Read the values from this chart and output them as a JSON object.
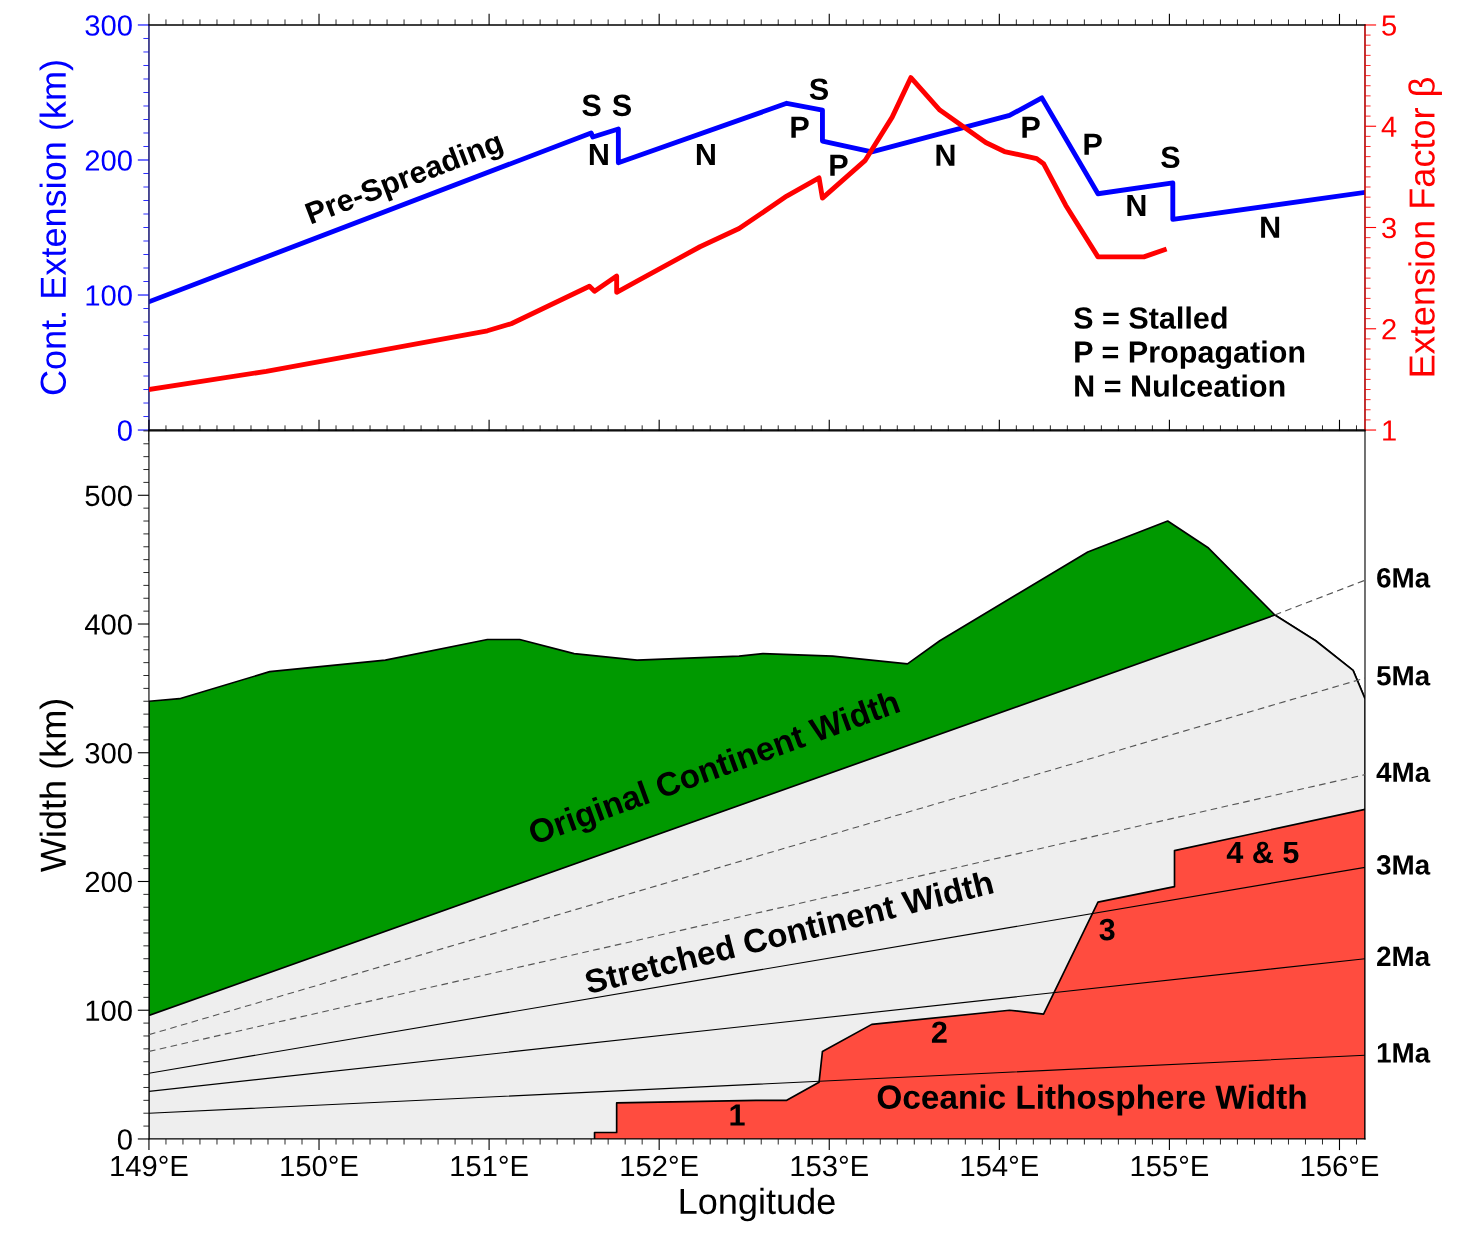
{
  "chart_data": [
    {
      "type": "line",
      "ylabel": "Cont. Extension (km)",
      "y2label": "Extension Factor β",
      "xlim": [
        149,
        156.15
      ],
      "xticks": [
        {
          "value": 149,
          "label": null
        },
        {
          "value": 150,
          "label": null
        },
        {
          "value": 151,
          "label": null
        },
        {
          "value": 152,
          "label": null
        },
        {
          "value": 153,
          "label": null
        },
        {
          "value": 154,
          "label": null
        },
        {
          "value": 155,
          "label": null
        },
        {
          "value": 156,
          "label": null
        }
      ],
      "ylim": [
        0,
        300
      ],
      "yticks": [
        0,
        100,
        200,
        300
      ],
      "y2lim": [
        1,
        5
      ],
      "y2ticks": [
        1,
        2,
        3,
        4,
        5
      ],
      "tick_labels": "y",
      "series": [
        {
          "color": "#0000ff",
          "axis": "y",
          "x": [
            149.0,
            151.6,
            151.61,
            151.76,
            151.76,
            152.75,
            152.96,
            152.96,
            153.25,
            154.06,
            154.25,
            154.58,
            155.02,
            155.02,
            156.15
          ],
          "values": [
            95,
            220,
            217,
            223,
            198,
            242,
            237,
            214,
            206,
            233,
            246,
            175,
            183,
            156,
            176
          ]
        },
        {
          "color": "#ff0000",
          "axis": "y2",
          "x": [
            149.0,
            149.69,
            150.99,
            151.13,
            151.59,
            151.62,
            151.75,
            151.75,
            151.87,
            152.24,
            152.47,
            152.75,
            152.94,
            152.96,
            153.21,
            153.37,
            153.48,
            153.65,
            153.92,
            154.03,
            154.22,
            154.26,
            154.39,
            154.58,
            154.85,
            154.97
          ],
          "values": [
            1.4,
            1.58,
            1.98,
            2.05,
            2.42,
            2.37,
            2.52,
            2.36,
            2.47,
            2.81,
            2.99,
            3.31,
            3.49,
            3.29,
            3.66,
            4.09,
            4.48,
            4.16,
            3.84,
            3.75,
            3.68,
            3.63,
            3.22,
            2.71,
            2.71,
            2.78
          ]
        }
      ],
      "annotations": [
        "Pre-Spreading",
        "S",
        "S",
        "N",
        "N",
        "S",
        "P",
        "P",
        "N",
        "P",
        "P",
        "S",
        "N",
        "N",
        "S = Stalled",
        "P = Propagation",
        "N = Nulceation"
      ]
    },
    {
      "type": "area",
      "xlabel": "Longitude",
      "ylabel": "Width (km)",
      "xlim": [
        149,
        156.15
      ],
      "xticks": [
        {
          "value": 149,
          "label": "149°E"
        },
        {
          "value": 150,
          "label": "150°E"
        },
        {
          "value": 151,
          "label": "151°E"
        },
        {
          "value": 152,
          "label": "152°E"
        },
        {
          "value": 153,
          "label": "153°E"
        },
        {
          "value": 154,
          "label": "154°E"
        },
        {
          "value": 155,
          "label": "155°E"
        },
        {
          "value": 156,
          "label": "156°E"
        }
      ],
      "ylim": [
        0,
        550
      ],
      "yticks": [
        0,
        100,
        200,
        300,
        400,
        500
      ],
      "series": [
        {
          "color": "#009900",
          "x": [
            149.0,
            149.18,
            149.71,
            150.39,
            150.99,
            151.18,
            151.5,
            151.87,
            152.47,
            152.61,
            153.02,
            153.46,
            153.65,
            154.52,
            154.99,
            155.23,
            155.62,
            155.86,
            156.08,
            156.15
          ],
          "values": [
            340,
            342,
            363,
            372,
            388,
            388,
            377,
            372,
            375,
            377,
            375,
            369,
            387,
            456,
            480,
            459,
            407,
            387,
            364,
            342
          ]
        },
        {
          "color": "#eeeeee",
          "x": [
            149.0,
            155.62,
            155.86,
            156.08,
            156.15
          ],
          "values": [
            96,
            407,
            387,
            364,
            342
          ]
        },
        {
          "color": "#ff4c3f",
          "x": [
            151.62,
            151.75,
            151.75,
            152.57,
            152.75,
            152.94,
            152.96,
            153.25,
            154.06,
            154.26,
            154.58,
            155.03,
            155.03,
            156.15
          ],
          "values": [
            5,
            5,
            28,
            30,
            30,
            44,
            68,
            89,
            100,
            97,
            184,
            196,
            224,
            256
          ]
        },
        {
          "name": "1Ma",
          "type": "line",
          "line_style": "solid",
          "color": "#000000",
          "x": [
            149.0,
            156.15
          ],
          "values": [
            20,
            65
          ]
        },
        {
          "name": "2Ma",
          "type": "line",
          "line_style": "solid",
          "color": "#000000",
          "x": [
            149.0,
            156.15
          ],
          "values": [
            37,
            140
          ]
        },
        {
          "name": "3Ma",
          "type": "line",
          "line_style": "solid",
          "color": "#000000",
          "x": [
            149.0,
            156.15
          ],
          "values": [
            51,
            211
          ]
        },
        {
          "name": "4Ma",
          "type": "line",
          "line_style": "dashed",
          "color": "#555555",
          "x": [
            149.0,
            156.15
          ],
          "values": [
            68,
            283
          ]
        },
        {
          "name": "5Ma",
          "type": "line",
          "line_style": "dashed",
          "color": "#555555",
          "x": [
            149.0,
            156.15
          ],
          "values": [
            81,
            358
          ]
        },
        {
          "name": "6Ma",
          "type": "line",
          "line_style": "dashed",
          "color": "#555555",
          "x": [
            155.62,
            156.15
          ],
          "values": [
            407,
            434
          ]
        }
      ],
      "annotations": [
        "Original Continent Width",
        "Stretched Continent Width",
        "Oceanic Lithosphere Width",
        "1",
        "2",
        "3",
        "4 & 5"
      ]
    }
  ]
}
